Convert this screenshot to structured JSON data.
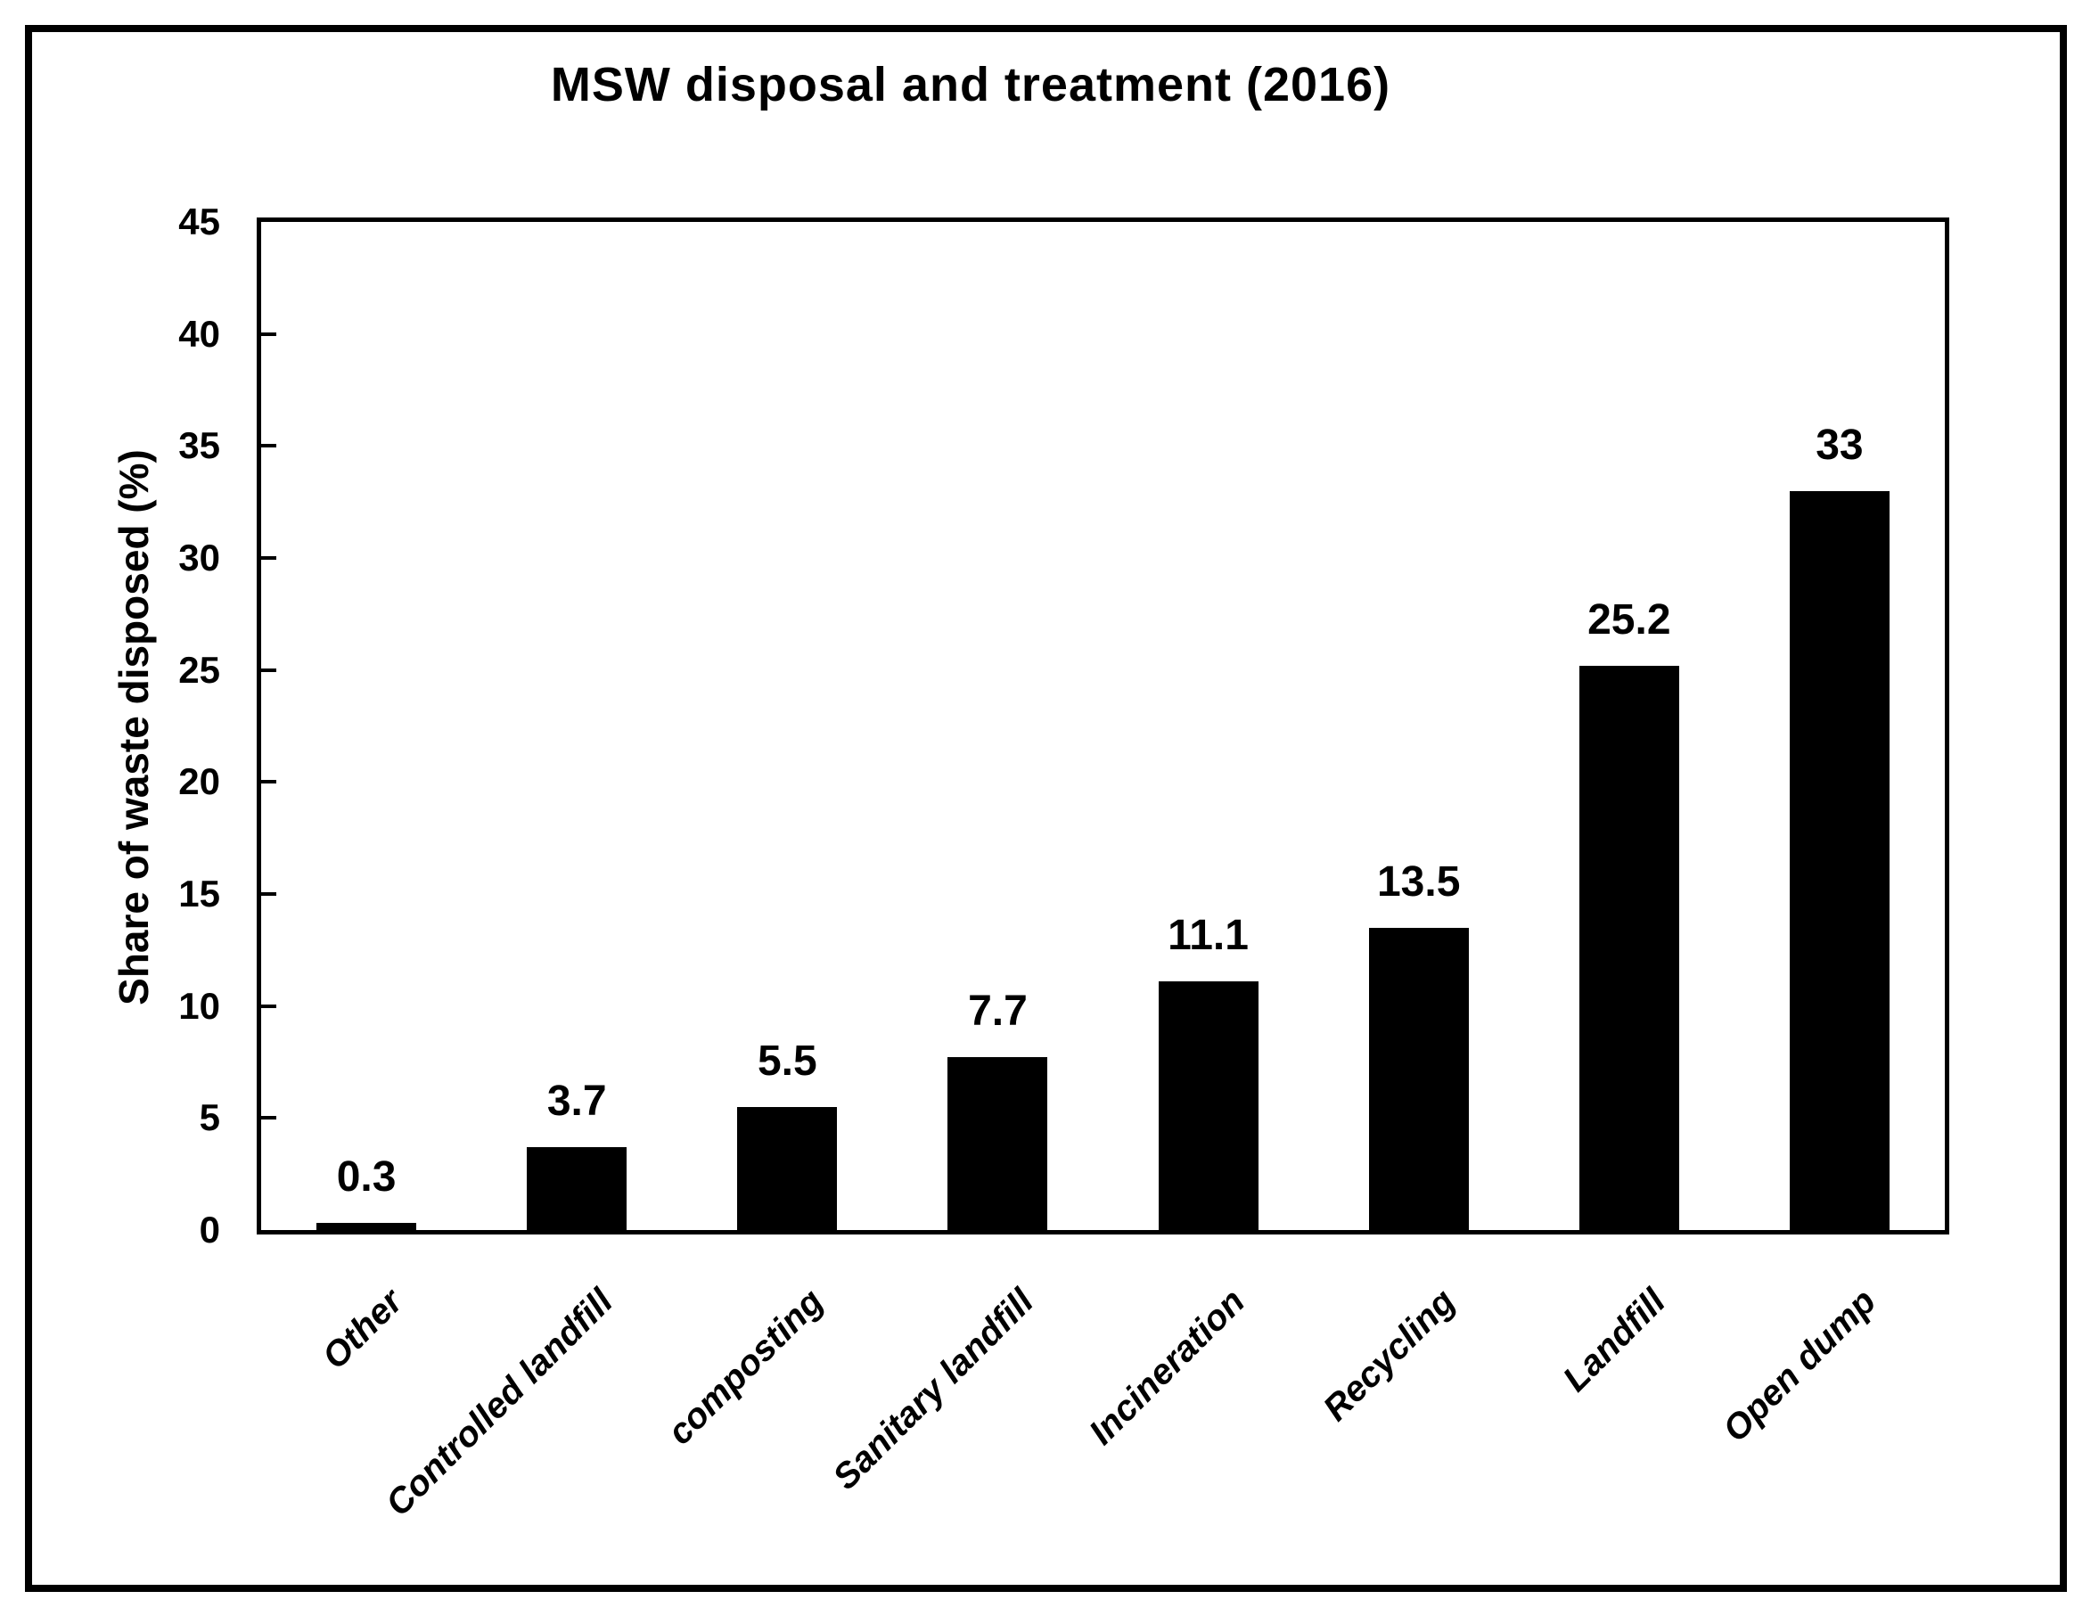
{
  "chart_data": {
    "type": "bar",
    "title": "MSW disposal and treatment (2016)",
    "xlabel": "",
    "ylabel": "Share of waste disposed (%)",
    "categories": [
      "Other",
      "Controlled landfill",
      "composting",
      "Sanitary landfill",
      "Incineration",
      "Recycling",
      "Landfill",
      "Open dump"
    ],
    "values": [
      0.3,
      3.7,
      5.5,
      7.7,
      11.1,
      13.5,
      25.2,
      33
    ],
    "data_labels": [
      "0.3",
      "3.7",
      "5.5",
      "7.7",
      "11.1",
      "13.5",
      "25.2",
      "33"
    ],
    "ylim": [
      0,
      45
    ],
    "ytick_step": 5,
    "ytick_labels": [
      "0",
      "5",
      "10",
      "15",
      "20",
      "25",
      "30",
      "35",
      "40",
      "45"
    ],
    "bar_color": "#000000",
    "text_color": "#000000",
    "background_color": "#ffffff",
    "grid": false,
    "legend": "none",
    "xtick_rotation_deg": 45
  }
}
